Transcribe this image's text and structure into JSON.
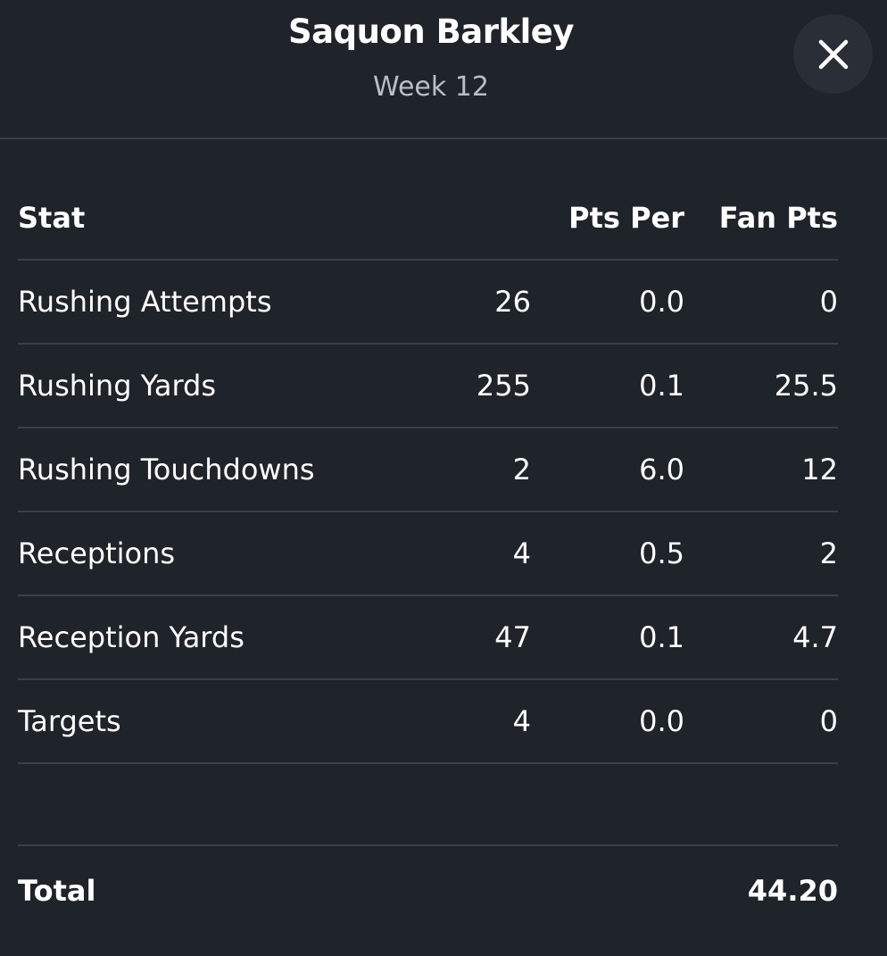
{
  "header": {
    "player_name": "Saquon Barkley",
    "week": "Week 12",
    "close_icon": "close-icon"
  },
  "table": {
    "headers": {
      "stat": "Stat",
      "value": "",
      "pts_per": "Pts Per",
      "fan_pts": "Fan Pts"
    },
    "rows": [
      {
        "stat": "Rushing Attempts",
        "value": "26",
        "pts_per": "0.0",
        "fan_pts": "0"
      },
      {
        "stat": "Rushing Yards",
        "value": "255",
        "pts_per": "0.1",
        "fan_pts": "25.5"
      },
      {
        "stat": "Rushing Touchdowns",
        "value": "2",
        "pts_per": "6.0",
        "fan_pts": "12"
      },
      {
        "stat": "Receptions",
        "value": "4",
        "pts_per": "0.5",
        "fan_pts": "2"
      },
      {
        "stat": "Reception Yards",
        "value": "47",
        "pts_per": "0.1",
        "fan_pts": "4.7"
      },
      {
        "stat": "Targets",
        "value": "4",
        "pts_per": "0.0",
        "fan_pts": "0"
      }
    ]
  },
  "total": {
    "label": "Total",
    "value": "44.20"
  },
  "colors": {
    "background": "#1f232a",
    "divider": "#3a4048",
    "subtle_text": "#b9bec6",
    "close_button_bg": "#2a2f37"
  }
}
